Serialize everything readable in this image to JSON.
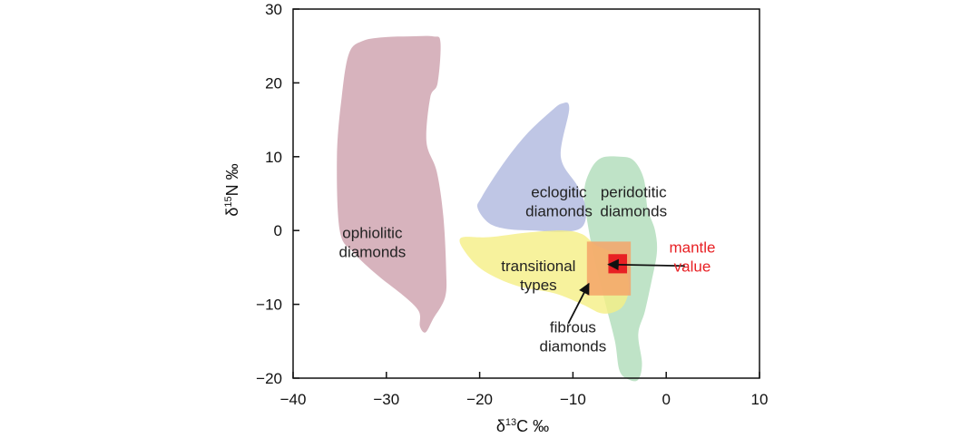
{
  "chart_data": {
    "type": "scatter",
    "title": "",
    "xlabel": {
      "prefix": "δ",
      "superscript": "13",
      "element": "C ‰"
    },
    "ylabel": {
      "prefix": "δ",
      "superscript": "15",
      "element": "N ‰"
    },
    "xlim": [
      -40,
      10
    ],
    "ylim": [
      -20,
      30
    ],
    "xticks": [
      -40,
      -30,
      -20,
      -10,
      0,
      10
    ],
    "yticks": [
      -20,
      -10,
      0,
      10,
      20,
      30
    ],
    "xtick_labels": [
      "−40",
      "−30",
      "−20",
      "−10",
      "0",
      "10"
    ],
    "ytick_labels": [
      "−20",
      "−10",
      "0",
      "10",
      "20",
      "30"
    ],
    "grid": false,
    "regions": [
      {
        "name": "ophiolitic",
        "label_lines": [
          "ophiolitic",
          "diamonds"
        ],
        "label_at": [
          -31.5,
          -1.0
        ],
        "color": "#c28a9a",
        "opacity": 0.65,
        "polygon": [
          [
            -34.0,
            24.0
          ],
          [
            -32.5,
            25.7
          ],
          [
            -30.0,
            26.2
          ],
          [
            -27.5,
            26.3
          ],
          [
            -25.0,
            26.3
          ],
          [
            -24.2,
            25.5
          ],
          [
            -24.5,
            20.0
          ],
          [
            -25.3,
            18.0
          ],
          [
            -25.7,
            12.0
          ],
          [
            -24.6,
            8.0
          ],
          [
            -23.9,
            2.0
          ],
          [
            -23.6,
            -5.0
          ],
          [
            -23.7,
            -9.0
          ],
          [
            -25.0,
            -12.0
          ],
          [
            -25.8,
            -13.8
          ],
          [
            -26.4,
            -13.0
          ],
          [
            -26.5,
            -11.0
          ],
          [
            -28.0,
            -9.0
          ],
          [
            -31.0,
            -6.0
          ],
          [
            -33.5,
            -3.0
          ],
          [
            -35.0,
            0.0
          ],
          [
            -35.3,
            10.0
          ],
          [
            -34.8,
            18.0
          ]
        ]
      },
      {
        "name": "eclogitic",
        "label_lines": [
          "eclogitic",
          "diamonds"
        ],
        "label_at": [
          -11.5,
          4.5
        ],
        "color": "#aab3dc",
        "opacity": 0.75,
        "polygon": [
          [
            -19.8,
            4.5
          ],
          [
            -17.5,
            9.0
          ],
          [
            -15.0,
            13.0
          ],
          [
            -12.5,
            16.0
          ],
          [
            -11.2,
            17.2
          ],
          [
            -10.4,
            16.5
          ],
          [
            -11.3,
            10.0
          ],
          [
            -9.5,
            6.0
          ],
          [
            -8.6,
            3.0
          ],
          [
            -9.0,
            0.5
          ],
          [
            -11.0,
            -0.2
          ],
          [
            -14.0,
            0.0
          ],
          [
            -17.0,
            0.2
          ],
          [
            -19.0,
            1.0
          ],
          [
            -20.2,
            3.0
          ]
        ]
      },
      {
        "name": "peridotitic",
        "label_lines": [
          "peridotitic",
          "diamonds"
        ],
        "label_at": [
          -3.5,
          4.5
        ],
        "color": "#a9d9b4",
        "opacity": 0.75,
        "polygon": [
          [
            -8.2,
            8.0
          ],
          [
            -7.0,
            9.8
          ],
          [
            -5.0,
            10.0
          ],
          [
            -3.5,
            9.5
          ],
          [
            -2.4,
            7.0
          ],
          [
            -2.0,
            3.0
          ],
          [
            -1.2,
            0.0
          ],
          [
            -1.0,
            -3.0
          ],
          [
            -1.6,
            -7.0
          ],
          [
            -2.3,
            -11.0
          ],
          [
            -3.0,
            -14.0
          ],
          [
            -2.6,
            -18.0
          ],
          [
            -3.0,
            -20.2
          ],
          [
            -4.0,
            -20.2
          ],
          [
            -5.0,
            -19.0
          ],
          [
            -5.5,
            -15.0
          ],
          [
            -6.5,
            -10.0
          ],
          [
            -7.5,
            -5.0
          ],
          [
            -8.3,
            0.0
          ],
          [
            -8.8,
            5.0
          ]
        ]
      },
      {
        "name": "transitional",
        "label_lines": [
          "transitional",
          "types"
        ],
        "label_at": [
          -13.7,
          -5.5
        ],
        "color": "#f5ef84",
        "opacity": 0.8,
        "polygon": [
          [
            -22.0,
            -1.0
          ],
          [
            -19.0,
            -0.9
          ],
          [
            -15.0,
            -0.3
          ],
          [
            -11.0,
            0.0
          ],
          [
            -9.0,
            -0.5
          ],
          [
            -7.5,
            -2.0
          ],
          [
            -5.0,
            -3.5
          ],
          [
            -4.2,
            -6.0
          ],
          [
            -4.0,
            -8.0
          ],
          [
            -4.5,
            -10.0
          ],
          [
            -5.5,
            -11.0
          ],
          [
            -7.0,
            -11.2
          ],
          [
            -9.0,
            -10.0
          ],
          [
            -12.0,
            -8.5
          ],
          [
            -16.0,
            -7.5
          ],
          [
            -19.5,
            -5.5
          ],
          [
            -21.5,
            -3.0
          ]
        ]
      },
      {
        "name": "fibrous",
        "color": "#f4a468",
        "opacity": 0.85,
        "rect": {
          "x0": -8.5,
          "x1": -3.8,
          "y0": -8.8,
          "y1": -1.5
        }
      },
      {
        "name": "mantle",
        "color": "#e82024",
        "opacity": 1,
        "rect": {
          "x0": -6.2,
          "x1": -4.2,
          "y0": -5.8,
          "y1": -3.2
        }
      }
    ],
    "annotations": [
      {
        "name": "mantle-value",
        "label_lines": [
          "mantle",
          "value"
        ],
        "color": "#e82024",
        "text_at": [
          2.8,
          -3.0
        ],
        "arrow_from": [
          2.0,
          -4.8
        ],
        "arrow_to": [
          -6.2,
          -4.6
        ]
      },
      {
        "name": "fibrous-diamonds",
        "label_lines": [
          "fibrous",
          "diamonds"
        ],
        "color": "#222222",
        "text_at": [
          -10.0,
          -13.8
        ],
        "arrow_from": [
          -10.5,
          -12.6
        ],
        "arrow_to": [
          -8.3,
          -7.2
        ]
      }
    ]
  }
}
